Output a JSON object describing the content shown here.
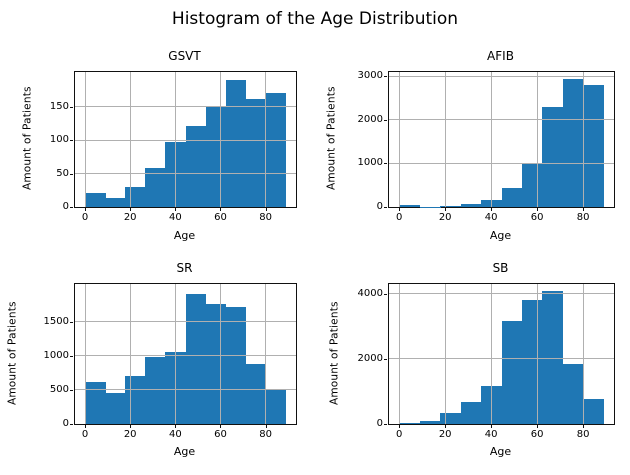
{
  "figure": {
    "title": "Histogram of the Age Distribution"
  },
  "colors": {
    "bar": "#1f77b4",
    "grid": "#b0b0b0",
    "spine": "#111111",
    "text": "#000000",
    "background": "#ffffff"
  },
  "chart_data": [
    {
      "type": "bar",
      "subtype": "histogram",
      "title": "GSVT",
      "xlabel": "Age",
      "ylabel": "Amount of Patients",
      "bin_edges": [
        0,
        8.9,
        17.8,
        26.7,
        35.6,
        44.5,
        53.4,
        62.3,
        71.2,
        80.1,
        89
      ],
      "values": [
        21,
        14,
        30,
        58,
        97,
        121,
        150,
        190,
        162,
        171
      ],
      "xticks": [
        0,
        20,
        40,
        60,
        80
      ],
      "yticks": [
        0,
        50,
        100,
        150
      ],
      "xlim": [
        -4.45,
        93.45
      ],
      "ylim": [
        0,
        202
      ],
      "grid": true,
      "legend": "none",
      "bar_color": "#1f77b4"
    },
    {
      "type": "bar",
      "subtype": "histogram",
      "title": "AFIB",
      "xlabel": "Age",
      "ylabel": "Amount of Patients",
      "bin_edges": [
        0,
        8.9,
        17.8,
        26.7,
        35.6,
        44.5,
        53.4,
        62.3,
        71.2,
        80.1,
        89
      ],
      "values": [
        40,
        10,
        30,
        65,
        150,
        440,
        1020,
        2290,
        2950,
        2800
      ],
      "xticks": [
        0,
        20,
        40,
        60,
        80
      ],
      "yticks": [
        0,
        1000,
        2000,
        3000
      ],
      "xlim": [
        -4.45,
        93.45
      ],
      "ylim": [
        0,
        3100
      ],
      "grid": true,
      "legend": "none",
      "bar_color": "#1f77b4"
    },
    {
      "type": "bar",
      "subtype": "histogram",
      "title": "SR",
      "xlabel": "Age",
      "ylabel": "Amount of Patients",
      "bin_edges": [
        0,
        8.9,
        17.8,
        26.7,
        35.6,
        44.5,
        53.4,
        62.3,
        71.2,
        80.1,
        89
      ],
      "values": [
        610,
        450,
        700,
        975,
        1060,
        1900,
        1750,
        1710,
        880,
        510
      ],
      "xticks": [
        0,
        20,
        40,
        60,
        80
      ],
      "yticks": [
        0,
        500,
        1000,
        1500
      ],
      "xlim": [
        -4.45,
        93.45
      ],
      "ylim": [
        0,
        2050
      ],
      "grid": true,
      "legend": "none",
      "bar_color": "#1f77b4"
    },
    {
      "type": "bar",
      "subtype": "histogram",
      "title": "SB",
      "xlabel": "Age",
      "ylabel": "Amount of Patients",
      "bin_edges": [
        0,
        8.9,
        17.8,
        26.7,
        35.6,
        44.5,
        53.4,
        62.3,
        71.2,
        80.1,
        89
      ],
      "values": [
        30,
        80,
        330,
        680,
        1180,
        3150,
        3800,
        4080,
        1830,
        780
      ],
      "xticks": [
        0,
        20,
        40,
        60,
        80
      ],
      "yticks": [
        0,
        2000,
        4000
      ],
      "xlim": [
        -4.45,
        93.45
      ],
      "ylim": [
        0,
        4300
      ],
      "grid": true,
      "legend": "none",
      "bar_color": "#1f77b4"
    }
  ]
}
